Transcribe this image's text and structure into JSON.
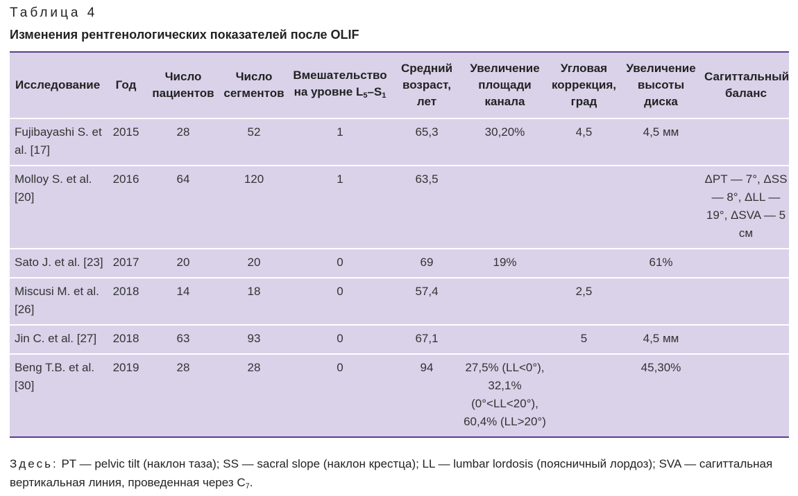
{
  "caption": {
    "number": "Таблица 4",
    "title": "Изменения рентгенологических показателей после OLIF"
  },
  "table": {
    "headers": {
      "study": "Исследование",
      "year": "Год",
      "patients": "Число пациентов",
      "segments": "Число сегментов",
      "intervention_text": "Вмешательство на уровне L",
      "intervention_sub1": "5",
      "intervention_dash": "–S",
      "intervention_sub2": "1",
      "age": "Средний возраст, лет",
      "canal": "Увеличение площади канала",
      "angle": "Угловая коррекция, град",
      "disc": "Увеличение высоты диска",
      "sagittal": "Сагиттальный баланс"
    },
    "rows": [
      {
        "study": "Fujibayashi S. et al. [17]",
        "year": "2015",
        "patients": "28",
        "segments": "52",
        "intervention": "1",
        "age": "65,3",
        "canal": "30,20%",
        "angle": "4,5",
        "disc": "4,5 мм",
        "sagittal": ""
      },
      {
        "study": "Molloy S. et al. [20]",
        "year": "2016",
        "patients": "64",
        "segments": "120",
        "intervention": "1",
        "age": "63,5",
        "canal": "",
        "angle": "",
        "disc": "",
        "sagittal": "ΔPT — 7°, ΔSS — 8°, ΔLL — 19°, ΔSVA — 5 см"
      },
      {
        "study": "Sato J. et al. [23]",
        "year": "2017",
        "patients": "20",
        "segments": "20",
        "intervention": "0",
        "age": "69",
        "canal": "19%",
        "angle": "",
        "disc": "61%",
        "sagittal": ""
      },
      {
        "study": "Miscusi M. et al. [26]",
        "year": "2018",
        "patients": "14",
        "segments": "18",
        "intervention": "0",
        "age": "57,4",
        "canal": "",
        "angle": "2,5",
        "disc": "",
        "sagittal": ""
      },
      {
        "study": "Jin C. et al. [27]",
        "year": "2018",
        "patients": "63",
        "segments": "93",
        "intervention": "0",
        "age": "67,1",
        "canal": "",
        "angle": "5",
        "disc": "4,5 мм",
        "sagittal": ""
      },
      {
        "study": "Beng T.B. et al. [30]",
        "year": "2019",
        "patients": "28",
        "segments": "28",
        "intervention": "0",
        "age": "94",
        "canal": "27,5% (LL<0°), 32,1% (0°<LL<20°), 60,4% (LL>20°)",
        "angle": "",
        "disc": "45,30%",
        "sagittal": ""
      }
    ]
  },
  "footnote": {
    "label": "Здесь:",
    "text": " PT — pelvic tilt (наклон таза); SS — sacral slope (наклон крестца); LL — lumbar lordosis (поясничный лордоз); SVA — сагиттальная вертикальная линия, проведенная через C",
    "sub": "7",
    "end": "."
  }
}
